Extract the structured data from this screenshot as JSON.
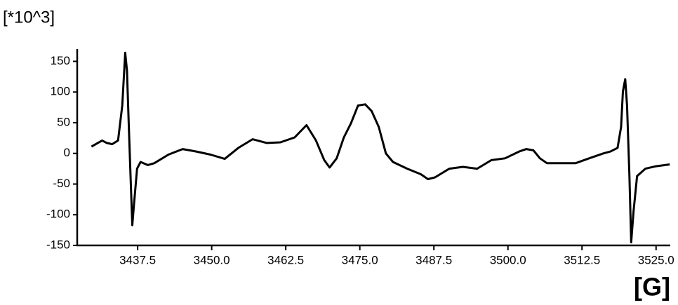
{
  "chart_data": {
    "type": "line",
    "y_axis_label": "[*10^3]",
    "x_axis_label": "[G]",
    "xlim": [
      3427.3,
      3527.4
    ],
    "ylim": [
      -150,
      170
    ],
    "xticks": [
      {
        "value": 3437.5,
        "label": "3437.5"
      },
      {
        "value": 3450,
        "label": "3450.0"
      },
      {
        "value": 3462.5,
        "label": "3462.5"
      },
      {
        "value": 3475,
        "label": "3475.0"
      },
      {
        "value": 3487.5,
        "label": "3487.5"
      },
      {
        "value": 3500,
        "label": "3500.0"
      },
      {
        "value": 3512.5,
        "label": "3512.5"
      },
      {
        "value": 3525,
        "label": "3525.0"
      }
    ],
    "yticks": [
      -150,
      -100,
      -50,
      0,
      50,
      100,
      150
    ],
    "color": "#000000",
    "x": [
      3429.7,
      3431.5,
      3432.3,
      3433.2,
      3434.2,
      3434.9,
      3435.4,
      3435.7,
      3436.0,
      3436.3,
      3436.6,
      3436.9,
      3437.4,
      3438.0,
      3439.2,
      3440.3,
      3442.7,
      3445.1,
      3447.4,
      3449.8,
      3452.2,
      3454.5,
      3456.9,
      3459.3,
      3461.6,
      3464.0,
      3466.0,
      3467.6,
      3469.0,
      3469.9,
      3471.1,
      3472.3,
      3473.5,
      3474.7,
      3475.9,
      3477.0,
      3478.2,
      3479.4,
      3480.6,
      3483.0,
      3485.3,
      3486.5,
      3487.7,
      3490.1,
      3492.4,
      3494.8,
      3497.2,
      3499.5,
      3501.9,
      3503.1,
      3504.3,
      3505.4,
      3506.6,
      3509.0,
      3511.4,
      3513.7,
      3516.1,
      3517.3,
      3518.5,
      3519.1,
      3519.4,
      3519.8,
      3520.1,
      3520.5,
      3520.8,
      3521.2,
      3521.8,
      3523.2,
      3525.0,
      3527.3
    ],
    "values": [
      11,
      21,
      17,
      15,
      21,
      78,
      164,
      135,
      49,
      -37,
      -117,
      -82,
      -25,
      -14,
      -19,
      -16,
      -2,
      7,
      3,
      -2,
      -9,
      9,
      23,
      17,
      18,
      26,
      46,
      21,
      -11,
      -23,
      -8,
      26,
      49,
      78,
      80,
      69,
      43,
      0,
      -14,
      -25,
      -34,
      -42,
      -39,
      -25,
      -22,
      -25,
      -11,
      -8,
      3,
      7,
      5,
      -8,
      -16,
      -16,
      -16,
      -8,
      0,
      3,
      9,
      43,
      101,
      121,
      78,
      -37,
      -145,
      -94,
      -37,
      -25,
      -21,
      -18
    ]
  }
}
